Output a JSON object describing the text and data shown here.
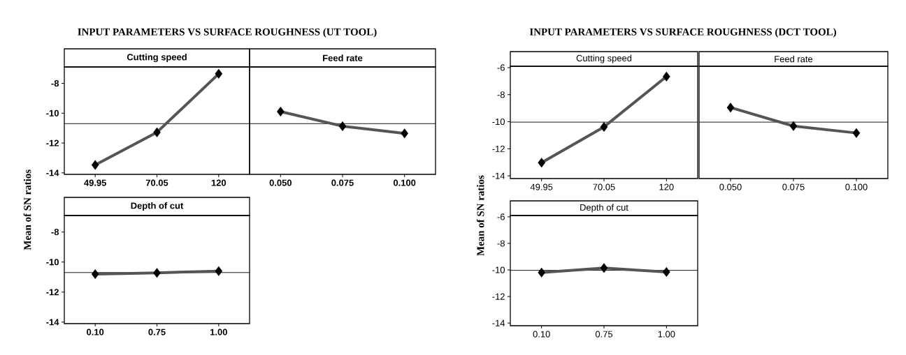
{
  "chart_data": [
    {
      "type": "line",
      "title": "INPUT PARAMETERS VS SURFACE ROUGHNESS (UT TOOL)",
      "subtitle": "Cutting speed",
      "ylabel": "Mean of SN ratios",
      "categories": [
        "49.95",
        "70.05",
        "120"
      ],
      "values": [
        -13.47,
        -11.28,
        -7.36
      ],
      "color": "#555555",
      "marker": "diamond",
      "line_style": "solid",
      "ylim": [
        -14.1,
        -6.9
      ],
      "yticks": [
        -14,
        -12,
        -10,
        -8
      ],
      "ref_lines": [
        {
          "axis": "y",
          "value": -10.7
        }
      ],
      "grid": false
    },
    {
      "type": "line",
      "subtitle": "Feed rate",
      "categories": [
        "0.050",
        "0.075",
        "0.100"
      ],
      "values": [
        -9.89,
        -10.87,
        -11.35
      ],
      "color": "#555555",
      "marker": "diamond",
      "line_style": "solid",
      "ylim": [
        -14.1,
        -6.9
      ],
      "tick_labels": "x",
      "ref_lines": [
        {
          "axis": "y",
          "value": -10.7
        }
      ],
      "grid": false
    },
    {
      "type": "line",
      "subtitle": "Depth of cut",
      "categories": [
        "0.10",
        "0.75",
        "1.00"
      ],
      "values": [
        -10.8,
        -10.72,
        -10.6
      ],
      "color": "#555555",
      "marker": "diamond",
      "line_style": "solid",
      "ylim": [
        -14.1,
        -6.9
      ],
      "yticks": [
        -14,
        -12,
        -10,
        -8
      ],
      "ref_lines": [
        {
          "axis": "y",
          "value": -10.7
        }
      ],
      "grid": false
    },
    {
      "type": "line",
      "title": "INPUT PARAMETERS VS SURFACE ROUGHNESS (DCT TOOL)",
      "subtitle": "Cutting speed",
      "ylabel": "Mean of SN ratios",
      "categories": [
        "49.95",
        "70.05",
        "120"
      ],
      "values": [
        -13.03,
        -10.38,
        -6.66
      ],
      "color": "#555555",
      "marker": "diamond",
      "line_style": "solid",
      "ylim": [
        -14.2,
        -5.9
      ],
      "yticks": [
        -14,
        -12,
        -10,
        -8,
        -6
      ],
      "ref_lines": [
        {
          "axis": "y",
          "value": -10.03
        }
      ],
      "grid": false
    },
    {
      "type": "line",
      "subtitle": "Feed rate",
      "categories": [
        "0.050",
        "0.075",
        "0.100"
      ],
      "values": [
        -8.95,
        -10.32,
        -10.83
      ],
      "color": "#555555",
      "marker": "diamond",
      "line_style": "solid",
      "ylim": [
        -14.2,
        -5.9
      ],
      "tick_labels": "x",
      "ref_lines": [
        {
          "axis": "y",
          "value": -10.03
        }
      ],
      "grid": false
    },
    {
      "type": "line",
      "subtitle": "Depth of cut",
      "categories": [
        "0.10",
        "0.75",
        "1.00"
      ],
      "values": [
        -10.2,
        -9.85,
        -10.15
      ],
      "color": "#555555",
      "marker": "diamond",
      "line_style": "solid",
      "ylim": [
        -14.2,
        -5.9
      ],
      "yticks": [
        -14,
        -12,
        -10,
        -8,
        -6
      ],
      "ref_lines": [
        {
          "axis": "y",
          "value": -10.03
        }
      ],
      "grid": false
    }
  ]
}
